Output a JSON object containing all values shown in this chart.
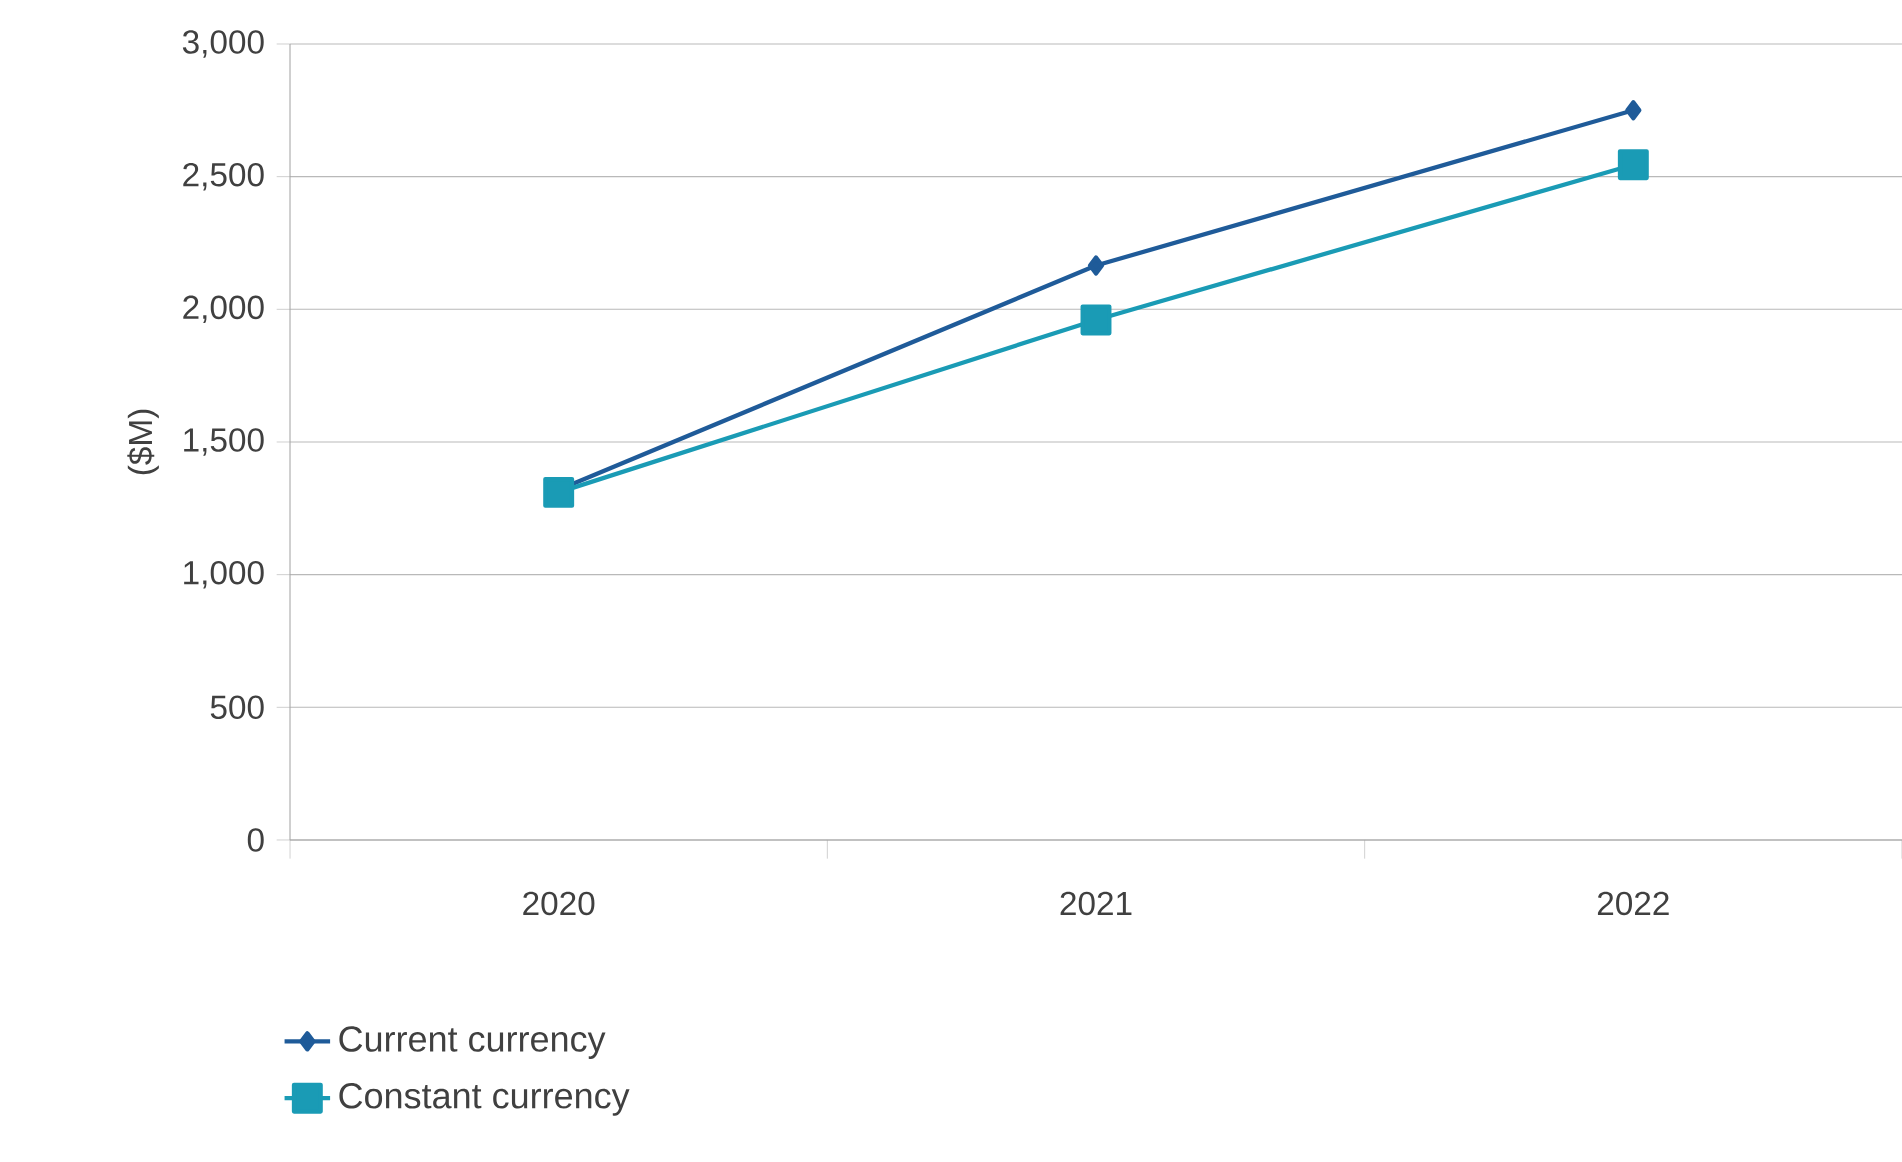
{
  "chart_data": {
    "type": "line",
    "ylabel": "($M)",
    "categories": [
      "2020",
      "2021",
      "2022"
    ],
    "series": [
      {
        "name": "Current currency",
        "color": "#1f5b99",
        "marker": "diamond",
        "values": [
          1320,
          2165,
          2750
        ]
      },
      {
        "name": "Constant currency",
        "color": "#1a9bb5",
        "marker": "square",
        "values": [
          1310,
          1960,
          2545
        ]
      }
    ],
    "ylim": [
      0,
      3000
    ],
    "yticks": [
      {
        "value": 0,
        "label": "0"
      },
      {
        "value": 500,
        "label": "500"
      },
      {
        "value": 1000,
        "label": "1,000"
      },
      {
        "value": 1500,
        "label": "1,500"
      },
      {
        "value": 2000,
        "label": "2,000"
      },
      {
        "value": 2500,
        "label": "2,500"
      },
      {
        "value": 3000,
        "label": "3,000"
      }
    ],
    "grid": "y",
    "legend": "bottom left",
    "line_style": "solid"
  }
}
